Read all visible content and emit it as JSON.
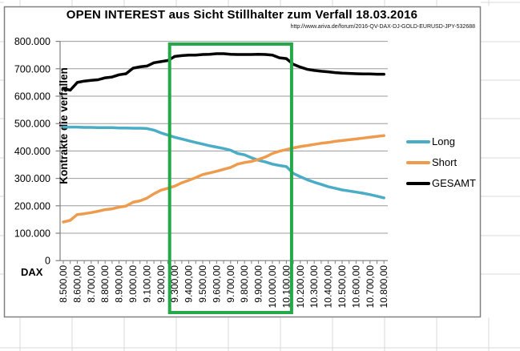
{
  "chart": {
    "source_url": "http://www.ariva.de/forum/2016-QV-DAX-DJ-GOLD-EURUSD-JPY-532688"
  },
  "chart_data": {
    "type": "line",
    "title": "OPEN INTEREST aus Sicht Stillhalter zum Verfall 18.03.2016",
    "xlabel": "DAX",
    "ylabel": "Kontrakte die verfallen",
    "ylim": [
      0,
      800000
    ],
    "y_gridline_step": 100000,
    "grid": "horizontal-only",
    "legend_position": "right-middle",
    "x_start": 8500,
    "x_step": 50,
    "n_points": 47,
    "y_tick_labels": [
      "800.000",
      "700.000",
      "600.000",
      "500.000",
      "400.000",
      "300.000",
      "200.000",
      "100.000",
      "0"
    ],
    "x_tick_labels": [
      "8.500,00",
      "8.600,00",
      "8.700,00",
      "8.800,00",
      "8.900,00",
      "9.000,00",
      "9.100,00",
      "9.200,00",
      "9.300,00",
      "9.400,00",
      "9.500,00",
      "9.600,00",
      "9.700,00",
      "9.800,00",
      "9.900,00",
      "10.000,00",
      "10.100,00",
      "10.200,00",
      "10.300,00",
      "10.400,00",
      "10.500,00",
      "10.600,00",
      "10.700,00",
      "10.800,00"
    ],
    "series": [
      {
        "name": "Long",
        "color": "#4bacc6",
        "values": [
          487000,
          487000,
          487000,
          486000,
          486000,
          485000,
          485000,
          485000,
          484000,
          484000,
          483000,
          483000,
          482000,
          476000,
          466000,
          458000,
          450000,
          444000,
          437000,
          431000,
          425000,
          419000,
          414000,
          409000,
          403000,
          391000,
          386000,
          375000,
          366000,
          360000,
          352000,
          347000,
          343000,
          318000,
          306000,
          295000,
          286000,
          278000,
          270000,
          264000,
          258000,
          254000,
          250000,
          246000,
          241000,
          235000,
          229000
        ]
      },
      {
        "name": "Short",
        "color": "#ee9b4e",
        "values": [
          141000,
          147000,
          168000,
          171000,
          175000,
          180000,
          186000,
          189000,
          195000,
          199000,
          213000,
          218000,
          228000,
          244000,
          257000,
          264000,
          272000,
          284000,
          293000,
          303000,
          314000,
          320000,
          326000,
          333000,
          340000,
          352000,
          358000,
          362000,
          369000,
          378000,
          391000,
          399000,
          405000,
          411000,
          416000,
          420000,
          424000,
          428000,
          431000,
          435000,
          438000,
          441000,
          444000,
          447000,
          450000,
          453000,
          456000
        ]
      },
      {
        "name": "GESAMT",
        "color": "#000000",
        "values": [
          628000,
          622000,
          650000,
          655000,
          658000,
          660000,
          667000,
          670000,
          678000,
          682000,
          702000,
          707000,
          710000,
          722000,
          726000,
          730000,
          745000,
          748000,
          750000,
          750000,
          752000,
          753000,
          755000,
          755000,
          753000,
          752000,
          752000,
          752000,
          753000,
          752000,
          750000,
          740000,
          737000,
          716000,
          706000,
          698000,
          694000,
          691000,
          689000,
          686000,
          684000,
          683000,
          682000,
          681000,
          681000,
          680000,
          680000
        ]
      }
    ],
    "highlight_box": {
      "x_from": 9300,
      "x_to": 10100,
      "color": "#25a849"
    },
    "colors": {
      "gridline": "#9b9b9b",
      "axis": "#7f7f7f",
      "chart_frame": "#808080",
      "excel_margin_grid": "#d9d9d9"
    }
  }
}
